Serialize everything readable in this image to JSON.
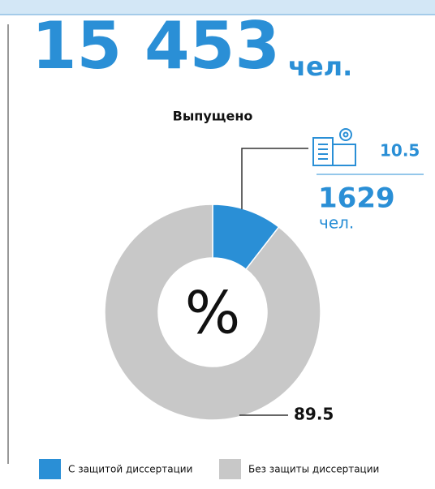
{
  "chart_data": {
    "type": "pie",
    "donut": true,
    "title": "15 453",
    "title_unit": "чел.",
    "subtitle": "Выпущено",
    "center_label": "%",
    "categories": [
      "С защитой диссертации",
      "Без защиты диссертации"
    ],
    "values": [
      10.5,
      89.5
    ],
    "colors": [
      "#2a8fd6",
      "#c8c8c8"
    ],
    "annotation": {
      "value": "1629",
      "unit": "чел."
    }
  }
}
